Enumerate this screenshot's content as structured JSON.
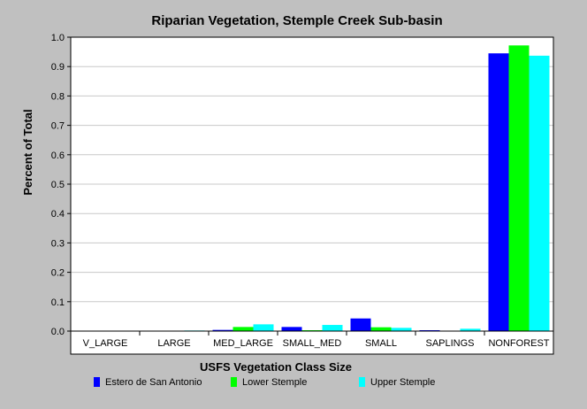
{
  "chart_data": {
    "type": "bar",
    "title": "Riparian Vegetation, Stemple Creek Sub-basin",
    "xlabel": "USFS Vegetation Class Size",
    "ylabel": "Percent of Total",
    "categories": [
      "V_LARGE",
      "LARGE",
      "MED_LARGE",
      "SMALL_MED",
      "SMALL",
      "SAPLINGS",
      "NONFOREST"
    ],
    "ylim": [
      0,
      1.0
    ],
    "yticks": [
      "0.0",
      "0.1",
      "0.2",
      "0.3",
      "0.4",
      "0.5",
      "0.6",
      "0.7",
      "0.8",
      "0.9",
      "1.0"
    ],
    "grid": true,
    "legend_position": "bottom",
    "series": [
      {
        "name": "Estero de San Antonio",
        "color": "#0000ff",
        "values": [
          0.0,
          0.0,
          0.004,
          0.014,
          0.043,
          0.003,
          0.945
        ]
      },
      {
        "name": "Lower Stemple",
        "color": "#00ff00",
        "values": [
          0.0,
          0.0,
          0.014,
          0.003,
          0.013,
          0.001,
          0.972
        ]
      },
      {
        "name": "Upper Stemple",
        "color": "#00ffff",
        "values": [
          0.0,
          0.002,
          0.023,
          0.021,
          0.011,
          0.008,
          0.937
        ]
      }
    ]
  }
}
